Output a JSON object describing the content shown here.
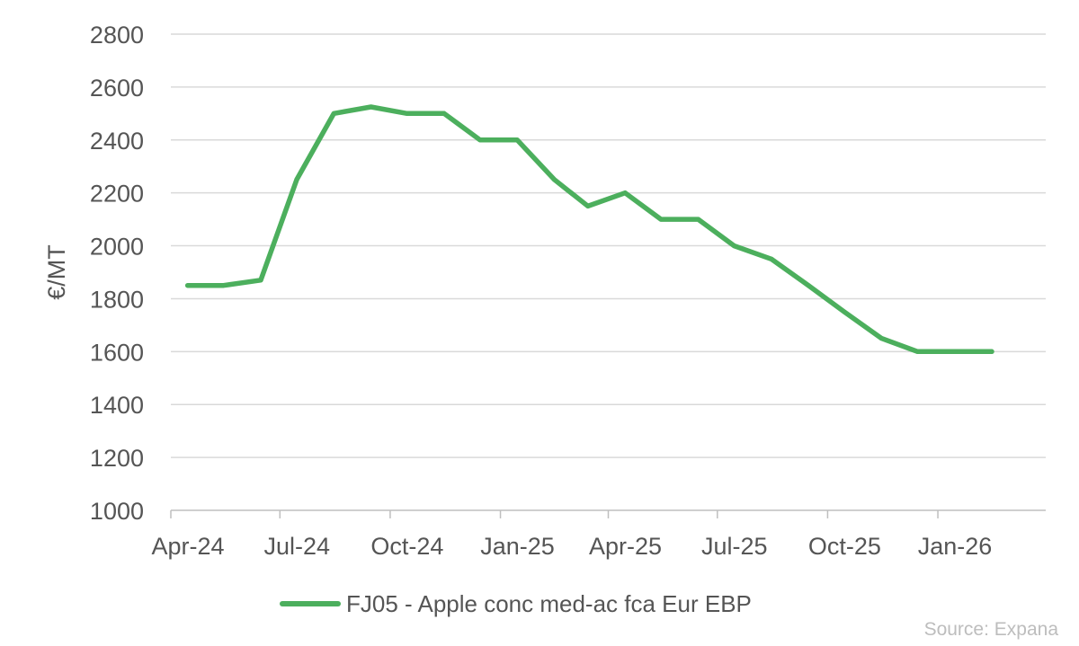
{
  "chart_data": {
    "type": "line",
    "ylabel": "€/MT",
    "xlabel": "",
    "ylim": [
      1000,
      2800
    ],
    "yticks": [
      1000,
      1200,
      1400,
      1600,
      1800,
      2000,
      2200,
      2400,
      2600,
      2800
    ],
    "x_tick_labels": [
      "Apr-24",
      "Jul-24",
      "Oct-24",
      "Jan-25",
      "Apr-25",
      "Jul-25",
      "Oct-25",
      "Jan-26"
    ],
    "x_tick_dates": [
      "2024-04-01",
      "2024-07-01",
      "2024-10-01",
      "2025-01-01",
      "2025-04-01",
      "2025-07-01",
      "2025-10-01",
      "2026-01-01"
    ],
    "xlim": [
      "2024-04-01",
      "2026-04-01"
    ],
    "grid": "horizontal",
    "legend_position": "bottom",
    "series": [
      {
        "name": "FJ05 - Apple conc med-ac fca Eur EBP",
        "color": "#4caf5d",
        "points": [
          {
            "x": "2024-04-15",
            "y": 1850
          },
          {
            "x": "2024-05-15",
            "y": 1850
          },
          {
            "x": "2024-06-15",
            "y": 1870
          },
          {
            "x": "2024-07-15",
            "y": 2250
          },
          {
            "x": "2024-08-15",
            "y": 2500
          },
          {
            "x": "2024-09-15",
            "y": 2525
          },
          {
            "x": "2024-10-15",
            "y": 2500
          },
          {
            "x": "2024-11-15",
            "y": 2500
          },
          {
            "x": "2024-12-15",
            "y": 2400
          },
          {
            "x": "2025-01-15",
            "y": 2400
          },
          {
            "x": "2025-02-15",
            "y": 2250
          },
          {
            "x": "2025-03-15",
            "y": 2150
          },
          {
            "x": "2025-04-15",
            "y": 2200
          },
          {
            "x": "2025-05-15",
            "y": 2100
          },
          {
            "x": "2025-06-15",
            "y": 2100
          },
          {
            "x": "2025-07-15",
            "y": 2000
          },
          {
            "x": "2025-08-15",
            "y": 1950
          },
          {
            "x": "2025-09-15",
            "y": 1850
          },
          {
            "x": "2025-10-15",
            "y": 1750
          },
          {
            "x": "2025-11-15",
            "y": 1650
          },
          {
            "x": "2025-12-15",
            "y": 1600
          },
          {
            "x": "2026-01-15",
            "y": 1600
          },
          {
            "x": "2026-02-15",
            "y": 1600
          }
        ]
      }
    ]
  },
  "source": "Source: Expana",
  "colors": {
    "line": "#4caf5d",
    "grid": "#d9d9d9",
    "axis": "#bfbfbf",
    "text": "#555555",
    "source": "#bdbdbd"
  }
}
